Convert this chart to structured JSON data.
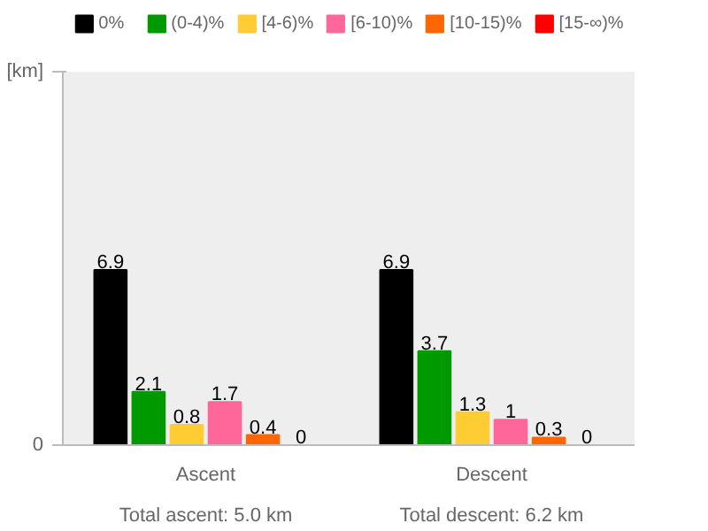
{
  "chart_data": {
    "type": "bar",
    "categories": [
      "Ascent",
      "Descent"
    ],
    "series": [
      {
        "name": "0%",
        "color": "#000000",
        "values": [
          6.9,
          6.9
        ]
      },
      {
        "name": "(0-4)%",
        "color": "#009900",
        "values": [
          2.1,
          3.7
        ]
      },
      {
        "name": "[4-6)%",
        "color": "#ffcc33",
        "values": [
          0.8,
          1.3
        ]
      },
      {
        "name": "[6-10)%",
        "color": "#ff6699",
        "values": [
          1.7,
          1
        ]
      },
      {
        "name": "[10-15)%",
        "color": "#ff6600",
        "values": [
          0.4,
          0.3
        ]
      },
      {
        "name": "[15-∞)%",
        "color": "#ff0000",
        "values": [
          0,
          0
        ]
      }
    ],
    "data_labels": true,
    "grid": false,
    "legend": "top",
    "annotations": [
      "Total ascent: 5.0 km",
      "Total descent: 6.2 km",
      "0",
      "[km]"
    ]
  }
}
